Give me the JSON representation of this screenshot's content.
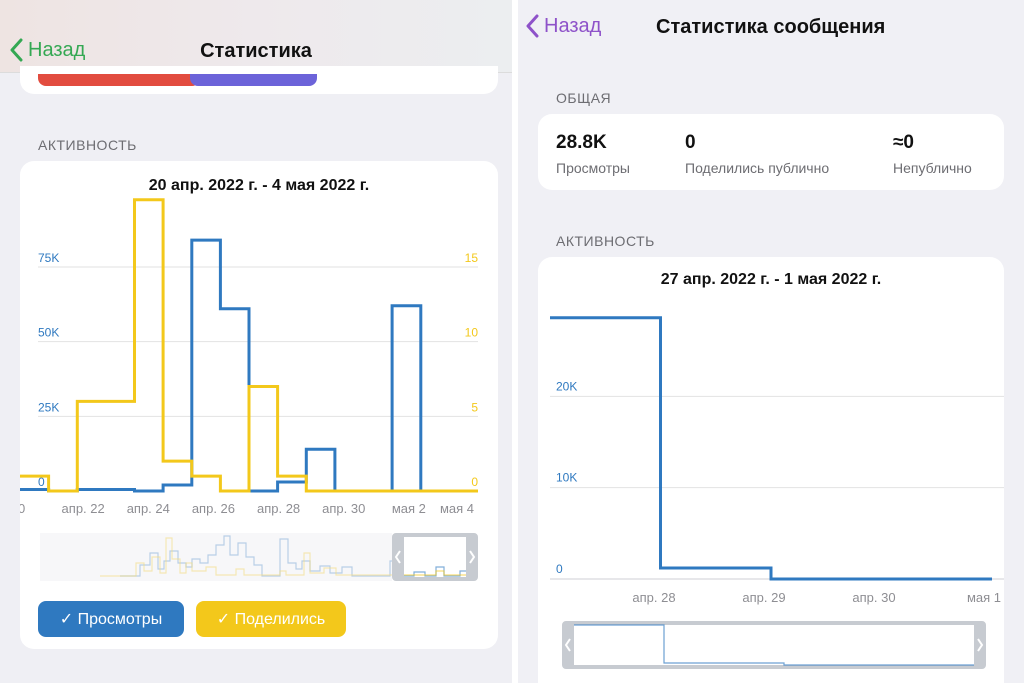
{
  "colors": {
    "views": "#2f79c0",
    "shares": "#f3c81b",
    "back_left": "#34a853",
    "back_right": "#8e52c9",
    "grid": "#e2e2e2"
  },
  "left": {
    "nav": {
      "back_label": "Назад",
      "title": "Статистика"
    },
    "top_buttons": [
      {
        "name": "red-button-stub",
        "color": "#e24c3f"
      },
      {
        "name": "purple-button-stub",
        "color": "#6c63d9"
      }
    ],
    "section": "АКТИВНОСТЬ",
    "chart": {
      "title": "20 апр. 2022 г. - 4 мая 2022 г."
    },
    "toggles": [
      {
        "label": "✓ Просмотры"
      },
      {
        "label": "✓ Поделились"
      }
    ]
  },
  "right": {
    "nav": {
      "back_label": "Назад",
      "title": "Статистика сообщения"
    },
    "general": {
      "title": "ОБЩАЯ",
      "stats": [
        {
          "value": "28.8K",
          "label": "Просмотры"
        },
        {
          "value": "0",
          "label": "Поделились публично"
        },
        {
          "value": "≈0",
          "label": "Непублично"
        }
      ]
    },
    "section": "АКТИВНОСТЬ",
    "chart": {
      "title": "27 апр. 2022 г. - 1 мая 2022 г."
    }
  },
  "chart_data": [
    {
      "type": "line",
      "title": "20 апр. 2022 г. - 4 мая 2022 г.",
      "x_labels": [
        "0",
        "апр. 22",
        "апр. 24",
        "апр. 26",
        "апр. 28",
        "апр. 30",
        "мая 2",
        "мая 4"
      ],
      "left_axis": {
        "ticks": [
          "0",
          "25K",
          "50K",
          "75K"
        ],
        "range": [
          0,
          75000
        ]
      },
      "right_axis": {
        "ticks": [
          "0",
          "5",
          "10",
          "15"
        ],
        "range": [
          0,
          15
        ]
      },
      "step": true,
      "series": [
        {
          "name": "Просмотры",
          "axis": "left",
          "values": [
            500,
            0,
            500,
            500,
            0,
            2000,
            84000,
            61000,
            0,
            3000,
            14000,
            0,
            0,
            62000,
            0,
            0
          ]
        },
        {
          "name": "Поделились",
          "axis": "right",
          "values": [
            1,
            0,
            6,
            6,
            19.5,
            2,
            1,
            0,
            7,
            1,
            0,
            0,
            0,
            0,
            0,
            0
          ]
        }
      ]
    },
    {
      "type": "line",
      "title": "27 апр. 2022 г. - 1 мая 2022 г.",
      "x_labels": [
        "апр. 28",
        "апр. 29",
        "апр. 30",
        "мая 1"
      ],
      "y_axis": {
        "ticks": [
          "0",
          "10K",
          "20K"
        ],
        "range": [
          0,
          30000
        ]
      },
      "step": true,
      "series": [
        {
          "name": "Просмотры",
          "values": [
            28600,
            1200,
            0,
            0
          ]
        }
      ]
    }
  ]
}
